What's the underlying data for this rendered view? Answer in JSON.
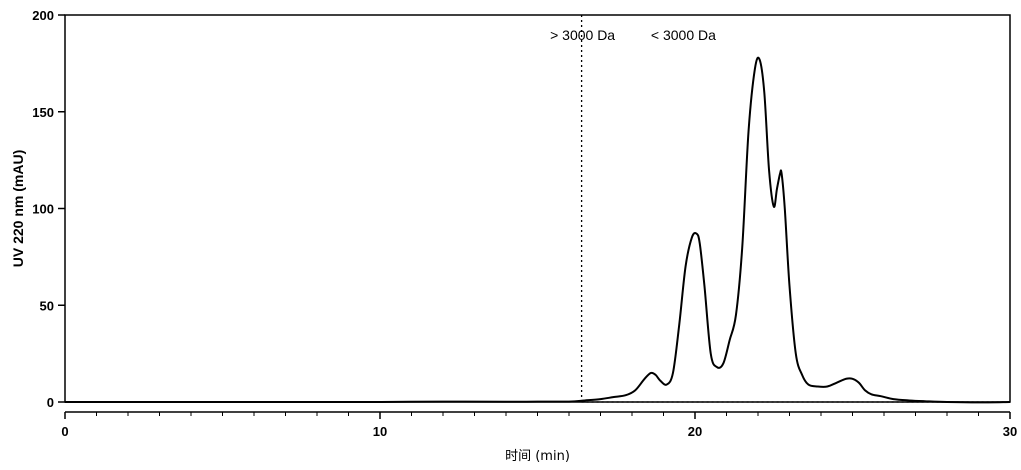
{
  "chart_data": {
    "type": "line",
    "title": "",
    "xlabel": "时间 (min)",
    "ylabel": "UV 220 nm (mAU)",
    "xlim": [
      0,
      30
    ],
    "ylim": [
      0,
      200
    ],
    "x_ticks": [
      0,
      10,
      20,
      30
    ],
    "x_minor_step": 1,
    "y_ticks": [
      0,
      50,
      100,
      150,
      200
    ],
    "grid": false,
    "legend": "none",
    "annotations": [
      {
        "text": "> 3000 Da",
        "x": 15.4
      },
      {
        "text": "< 3000 Da",
        "x": 18.6
      }
    ],
    "cutoff_line": {
      "x": 16.4,
      "style": "dotted"
    },
    "baseline": {
      "y": 0,
      "x_start": 16.4,
      "x_end": 30,
      "style": "dotted"
    },
    "series": [
      {
        "color": "#000000",
        "x": [
          0,
          2,
          4,
          6,
          8,
          10,
          12,
          14,
          15,
          16,
          16.5,
          17,
          17.4,
          17.8,
          18.1,
          18.4,
          18.6,
          18.75,
          18.9,
          19.1,
          19.3,
          19.5,
          19.7,
          19.9,
          20.05,
          20.15,
          20.3,
          20.5,
          20.7,
          20.9,
          21.1,
          21.3,
          21.5,
          21.7,
          21.9,
          22.05,
          22.2,
          22.35,
          22.5,
          22.6,
          22.7,
          22.75,
          22.85,
          23.0,
          23.2,
          23.4,
          23.6,
          23.9,
          24.2,
          24.5,
          24.8,
          25.0,
          25.2,
          25.4,
          25.6,
          25.9,
          26.3,
          26.8,
          27.3,
          28,
          29,
          30
        ],
        "y": [
          0,
          0,
          0,
          0,
          0,
          0,
          0.2,
          0.1,
          0.2,
          0.2,
          0.8,
          1.5,
          2.5,
          3.5,
          6,
          12,
          15,
          14,
          11,
          9,
          15,
          40,
          70,
          85,
          87,
          82,
          60,
          25,
          18,
          20,
          32,
          45,
          80,
          140,
          172,
          177,
          160,
          120,
          101,
          110,
          118,
          118,
          100,
          60,
          25,
          14,
          9,
          8,
          8,
          10,
          12,
          12,
          10,
          6,
          4,
          3,
          1.5,
          0.8,
          0.4,
          0,
          -0.2,
          0
        ]
      }
    ]
  }
}
